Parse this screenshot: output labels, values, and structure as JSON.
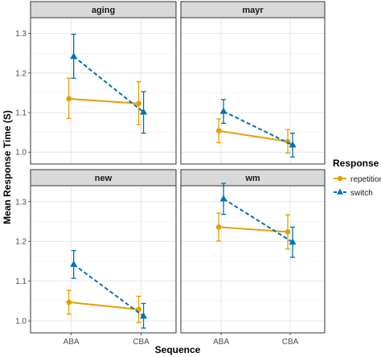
{
  "chart_data": {
    "type": "line",
    "title": "",
    "xlabel": "Sequence",
    "ylabel": "Mean Response Time (S)",
    "categories": [
      "ABA",
      "CBA"
    ],
    "ylim": [
      0.97,
      1.34
    ],
    "y_ticks": [
      1.0,
      1.1,
      1.2,
      1.3
    ],
    "y_tick_labels": [
      "1.0",
      "1.1",
      "1.2",
      "1.3"
    ],
    "grid": true,
    "legend": {
      "title": "Response",
      "position": "right",
      "entries": [
        "repetition",
        "switch"
      ]
    },
    "colors": {
      "repetition": "#E69F00",
      "switch": "#0072B2"
    },
    "panels": [
      {
        "title": "aging",
        "series": [
          {
            "name": "repetition",
            "values": [
              1.135,
              1.123
            ],
            "lower": [
              1.085,
              1.07
            ],
            "upper": [
              1.187,
              1.178
            ]
          },
          {
            "name": "switch",
            "values": [
              1.242,
              1.101
            ],
            "lower": [
              1.187,
              1.048
            ],
            "upper": [
              1.298,
              1.153
            ]
          }
        ]
      },
      {
        "title": "mayr",
        "series": [
          {
            "name": "repetition",
            "values": [
              1.054,
              1.027
            ],
            "lower": [
              1.024,
              0.998
            ],
            "upper": [
              1.084,
              1.057
            ]
          },
          {
            "name": "switch",
            "values": [
              1.103,
              1.018
            ],
            "lower": [
              1.073,
              0.988
            ],
            "upper": [
              1.133,
              1.048
            ]
          }
        ]
      },
      {
        "title": "new",
        "series": [
          {
            "name": "repetition",
            "values": [
              1.047,
              1.029
            ],
            "lower": [
              1.017,
              0.996
            ],
            "upper": [
              1.077,
              1.062
            ]
          },
          {
            "name": "switch",
            "values": [
              1.142,
              1.012
            ],
            "lower": [
              1.107,
              0.982
            ],
            "upper": [
              1.177,
              1.044
            ]
          }
        ]
      },
      {
        "title": "wm",
        "series": [
          {
            "name": "repetition",
            "values": [
              1.236,
              1.224
            ],
            "lower": [
              1.201,
              1.181
            ],
            "upper": [
              1.271,
              1.267
            ]
          },
          {
            "name": "switch",
            "values": [
              1.307,
              1.198
            ],
            "lower": [
              1.268,
              1.16
            ],
            "upper": [
              1.346,
              1.236
            ]
          }
        ]
      }
    ]
  }
}
